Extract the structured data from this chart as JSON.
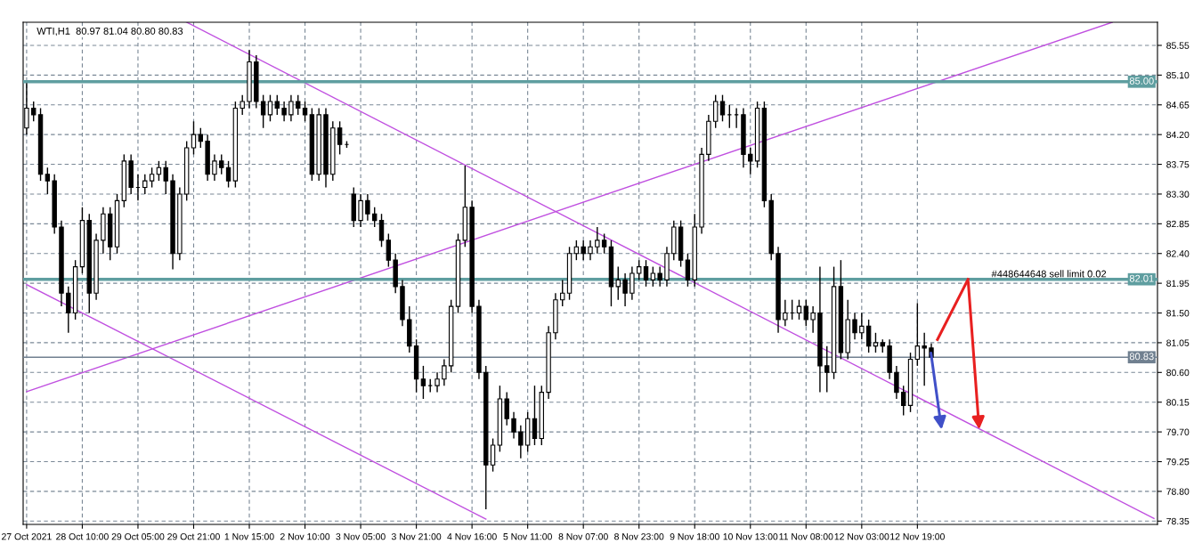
{
  "chart_data": {
    "type": "candlestick",
    "title": "WTI,H1  80.97 81.04 80.80 80.83",
    "color": "#000000",
    "categories": [
      "27 Oct 2021",
      null,
      null,
      null,
      null,
      null,
      null,
      null,
      "28 Oct 10:00",
      null,
      null,
      null,
      null,
      null,
      null,
      null,
      "29 Oct 05:00",
      null,
      null,
      null,
      null,
      null,
      null,
      null,
      "29 Oct 21:00",
      null,
      null,
      null,
      null,
      null,
      null,
      null,
      "1 Nov 15:00",
      null,
      null,
      null,
      null,
      null,
      null,
      null,
      "2 Nov 10:00",
      null,
      null,
      null,
      null,
      null,
      null,
      null,
      "3 Nov 05:00",
      null,
      null,
      null,
      null,
      null,
      null,
      null,
      "3 Nov 21:00",
      null,
      null,
      null,
      null,
      null,
      null,
      null,
      "4 Nov 16:00",
      null,
      null,
      null,
      null,
      null,
      null,
      null,
      "5 Nov 11:00",
      null,
      null,
      null,
      null,
      null,
      null,
      null,
      "8 Nov 07:00",
      null,
      null,
      null,
      null,
      null,
      null,
      null,
      "8 Nov 23:00",
      null,
      null,
      null,
      null,
      null,
      null,
      null,
      "9 Nov 18:00",
      null,
      null,
      null,
      null,
      null,
      null,
      null,
      "10 Nov 13:00",
      null,
      null,
      null,
      null,
      null,
      null,
      null,
      "11 Nov 08:00",
      null,
      null,
      null,
      null,
      null,
      null,
      null,
      "12 Nov 03:00",
      null,
      null,
      null,
      null,
      null,
      null,
      null,
      "12 Nov 19:00",
      null,
      null,
      null,
      null,
      null,
      null,
      null,
      null,
      null,
      null,
      null,
      null,
      null,
      null,
      null,
      null,
      null,
      null,
      null,
      null,
      null,
      null,
      null,
      null,
      null,
      null,
      null,
      null,
      null,
      null,
      null,
      null,
      null,
      null
    ],
    "ohlc": [
      [
        84.3,
        84.98,
        84.2,
        84.6
      ],
      [
        84.6,
        84.7,
        84.4,
        84.5
      ],
      [
        84.5,
        84.6,
        83.5,
        83.6
      ],
      [
        83.6,
        83.7,
        83.3,
        83.5
      ],
      [
        83.5,
        83.6,
        82.7,
        82.8
      ],
      [
        82.8,
        82.9,
        81.6,
        81.8
      ],
      [
        81.8,
        81.9,
        81.2,
        81.5
      ],
      [
        81.5,
        82.3,
        81.4,
        82.2
      ],
      [
        82.2,
        83.1,
        82.1,
        82.9
      ],
      [
        82.9,
        83.0,
        81.5,
        81.8
      ],
      [
        81.8,
        82.7,
        81.7,
        82.6
      ],
      [
        82.6,
        83.1,
        82.4,
        83.0
      ],
      [
        83.0,
        83.1,
        82.3,
        82.5
      ],
      [
        82.5,
        83.3,
        82.4,
        83.2
      ],
      [
        83.2,
        83.9,
        83.1,
        83.8
      ],
      [
        83.8,
        83.9,
        83.3,
        83.4
      ],
      [
        83.4,
        83.6,
        83.2,
        83.4
      ],
      [
        83.4,
        83.6,
        83.3,
        83.5
      ],
      [
        83.5,
        83.7,
        83.4,
        83.6
      ],
      [
        83.6,
        83.8,
        83.5,
        83.7
      ],
      [
        83.7,
        83.8,
        83.3,
        83.5
      ],
      [
        83.5,
        83.6,
        82.16,
        82.4
      ],
      [
        82.4,
        83.4,
        82.3,
        83.3
      ],
      [
        83.3,
        84.1,
        83.2,
        84.0
      ],
      [
        84.0,
        84.4,
        83.9,
        84.2
      ],
      [
        84.2,
        84.3,
        84.0,
        84.1
      ],
      [
        84.1,
        84.2,
        83.5,
        83.6
      ],
      [
        83.6,
        83.9,
        83.5,
        83.8
      ],
      [
        83.8,
        83.9,
        83.6,
        83.7
      ],
      [
        83.7,
        83.8,
        83.4,
        83.5
      ],
      [
        83.5,
        84.7,
        83.4,
        84.6
      ],
      [
        84.6,
        84.8,
        84.5,
        84.7
      ],
      [
        84.7,
        85.48,
        84.6,
        85.3
      ],
      [
        85.3,
        85.4,
        84.6,
        84.7
      ],
      [
        84.7,
        84.8,
        84.3,
        84.5
      ],
      [
        84.5,
        84.8,
        84.4,
        84.7
      ],
      [
        84.7,
        84.8,
        84.5,
        84.6
      ],
      [
        84.6,
        84.7,
        84.4,
        84.5
      ],
      [
        84.5,
        84.8,
        84.4,
        84.7
      ],
      [
        84.7,
        84.8,
        84.5,
        84.6
      ],
      [
        84.6,
        84.7,
        84.4,
        84.5
      ],
      [
        84.5,
        84.6,
        83.5,
        83.6
      ],
      [
        83.6,
        84.6,
        83.5,
        84.5
      ],
      [
        84.5,
        84.6,
        83.4,
        83.6
      ],
      [
        83.6,
        84.4,
        83.5,
        84.3
      ],
      [
        84.3,
        84.4,
        83.9,
        84.05
      ],
      [
        84.05,
        84.1,
        84.0,
        84.05
      ],
      [
        83.3,
        83.4,
        82.8,
        82.9
      ],
      [
        82.9,
        83.3,
        82.8,
        83.2
      ],
      [
        83.2,
        83.3,
        82.9,
        83.0
      ],
      [
        83.0,
        83.1,
        82.8,
        82.9
      ],
      [
        82.9,
        83.0,
        82.5,
        82.6
      ],
      [
        82.6,
        82.7,
        82.2,
        82.3
      ],
      [
        82.3,
        82.4,
        81.8,
        81.9
      ],
      [
        81.9,
        82.0,
        81.3,
        81.4
      ],
      [
        81.4,
        81.6,
        80.9,
        81.0
      ],
      [
        81.0,
        81.1,
        80.3,
        80.5
      ],
      [
        80.5,
        80.7,
        80.2,
        80.4
      ],
      [
        80.4,
        80.5,
        80.3,
        80.4
      ],
      [
        80.4,
        80.6,
        80.3,
        80.5
      ],
      [
        80.5,
        80.8,
        80.4,
        80.7
      ],
      [
        80.7,
        81.7,
        80.6,
        81.6
      ],
      [
        81.6,
        82.7,
        81.5,
        82.6
      ],
      [
        82.6,
        83.73,
        82.5,
        83.1
      ],
      [
        83.1,
        83.2,
        81.5,
        81.6
      ],
      [
        81.6,
        81.7,
        80.5,
        80.6
      ],
      [
        80.6,
        80.7,
        78.53,
        79.2
      ],
      [
        79.2,
        79.6,
        79.1,
        79.5
      ],
      [
        79.5,
        80.4,
        79.4,
        80.2
      ],
      [
        80.2,
        80.3,
        79.8,
        79.9
      ],
      [
        79.9,
        80.0,
        79.6,
        79.7
      ],
      [
        79.7,
        79.8,
        79.3,
        79.5
      ],
      [
        79.5,
        80.0,
        79.4,
        79.9
      ],
      [
        79.9,
        80.4,
        79.5,
        79.6
      ],
      [
        79.6,
        80.4,
        79.5,
        80.3
      ],
      [
        80.3,
        81.3,
        80.2,
        81.2
      ],
      [
        81.2,
        81.8,
        81.1,
        81.7
      ],
      [
        81.7,
        82.0,
        81.6,
        81.8
      ],
      [
        81.8,
        82.5,
        81.7,
        82.4
      ],
      [
        82.4,
        82.6,
        82.3,
        82.5
      ],
      [
        82.5,
        82.6,
        82.3,
        82.4
      ],
      [
        82.4,
        82.6,
        82.3,
        82.5
      ],
      [
        82.5,
        82.8,
        82.4,
        82.6
      ],
      [
        82.6,
        82.7,
        82.4,
        82.5
      ],
      [
        82.5,
        82.6,
        81.6,
        81.9
      ],
      [
        81.9,
        82.2,
        81.7,
        82.0
      ],
      [
        82.0,
        82.1,
        81.6,
        81.8
      ],
      [
        81.8,
        82.2,
        81.7,
        82.1
      ],
      [
        82.1,
        82.3,
        82.0,
        82.2
      ],
      [
        82.2,
        82.3,
        81.9,
        82.0
      ],
      [
        82.0,
        82.2,
        81.9,
        82.1
      ],
      [
        82.1,
        82.2,
        81.9,
        82.0
      ],
      [
        82.0,
        82.5,
        81.9,
        82.4
      ],
      [
        82.4,
        82.9,
        82.3,
        82.8
      ],
      [
        82.8,
        82.9,
        82.2,
        82.3
      ],
      [
        82.3,
        82.4,
        81.9,
        82.0
      ],
      [
        82.0,
        83.0,
        81.9,
        82.8
      ],
      [
        82.8,
        84.0,
        82.7,
        83.9
      ],
      [
        83.9,
        84.5,
        83.8,
        84.4
      ],
      [
        84.4,
        84.8,
        84.3,
        84.7
      ],
      [
        84.7,
        84.8,
        84.4,
        84.5
      ],
      [
        84.5,
        84.65,
        84.3,
        84.5
      ],
      [
        84.5,
        84.6,
        84.3,
        84.5
      ],
      [
        84.5,
        84.6,
        83.7,
        83.9
      ],
      [
        83.9,
        84.0,
        83.6,
        83.8
      ],
      [
        83.8,
        84.7,
        83.7,
        84.6
      ],
      [
        84.6,
        84.7,
        83.1,
        83.2
      ],
      [
        83.2,
        83.3,
        82.3,
        82.4
      ],
      [
        82.4,
        82.5,
        81.2,
        81.4
      ],
      [
        81.4,
        81.7,
        81.3,
        81.5
      ],
      [
        81.5,
        81.7,
        81.4,
        81.5
      ],
      [
        81.5,
        81.7,
        81.4,
        81.6
      ],
      [
        81.6,
        81.7,
        81.3,
        81.4
      ],
      [
        81.4,
        81.6,
        81.2,
        81.5
      ],
      [
        81.5,
        82.2,
        80.3,
        80.7
      ],
      [
        80.7,
        81.0,
        80.3,
        80.6
      ],
      [
        80.6,
        82.2,
        80.5,
        81.9
      ],
      [
        81.9,
        82.3,
        80.8,
        80.9
      ],
      [
        80.9,
        81.7,
        80.8,
        81.4
      ],
      [
        81.4,
        81.5,
        81.1,
        81.2
      ],
      [
        81.2,
        81.5,
        81.1,
        81.3
      ],
      [
        81.3,
        81.4,
        80.9,
        81.0
      ],
      [
        81.0,
        81.2,
        80.9,
        81.05
      ],
      [
        81.05,
        81.1,
        80.9,
        81.0
      ],
      [
        81.0,
        81.1,
        80.5,
        80.6
      ],
      [
        80.6,
        80.7,
        80.2,
        80.3
      ],
      [
        80.3,
        80.4,
        79.95,
        80.1
      ],
      [
        80.1,
        80.9,
        80.0,
        80.8
      ],
      [
        80.8,
        81.65,
        80.7,
        81.0
      ],
      [
        81.0,
        81.2,
        80.4,
        80.97
      ],
      [
        80.97,
        81.04,
        80.8,
        80.83
      ],
      null,
      null,
      null,
      null,
      null,
      null,
      null,
      null,
      null,
      null,
      null,
      null,
      null,
      null,
      null,
      null,
      null,
      null,
      null,
      null,
      null,
      null,
      null,
      null,
      null,
      null,
      null,
      null,
      null,
      null,
      null,
      null
    ],
    "series": [
      {
        "type": "line",
        "color": "#c050e0",
        "values": [
          null,
          null,
          null,
          null,
          null,
          null,
          null,
          null,
          null,
          null,
          null,
          null,
          null,
          null,
          null,
          null,
          null,
          null,
          null,
          null,
          null,
          null,
          null,
          85.9,
          null,
          null,
          null,
          null,
          null,
          null,
          null,
          null,
          null,
          null,
          null,
          null,
          null,
          null,
          null,
          null,
          null,
          null,
          null,
          null,
          null,
          null,
          null,
          null,
          null,
          null,
          null,
          null,
          null,
          null,
          null,
          null,
          null,
          null,
          null,
          null,
          null,
          null,
          null,
          null,
          null,
          null,
          null,
          null,
          null,
          null,
          null,
          null,
          null,
          null,
          null,
          null,
          null,
          null,
          null,
          null,
          null,
          null,
          null,
          null,
          null,
          null,
          null,
          null,
          null,
          null,
          null,
          null,
          null,
          null,
          null,
          null,
          null,
          null,
          null,
          null,
          null,
          null,
          null,
          null,
          null,
          null,
          null,
          null,
          null,
          null,
          null,
          null,
          null,
          null,
          null,
          null,
          null,
          null,
          null,
          null,
          null,
          null,
          null,
          null,
          null,
          null,
          null,
          null,
          null,
          null,
          null,
          null,
          null,
          null,
          null,
          null,
          null,
          null,
          null,
          null,
          null,
          null,
          null,
          null,
          null,
          null,
          null,
          null,
          null,
          null,
          null,
          null,
          null,
          null,
          null,
          null,
          null,
          null,
          null,
          null,
          null,
          null,
          78.39
        ]
      },
      {
        "type": "line",
        "color": "#c050e0",
        "values": [
          80.31,
          null,
          null,
          null,
          null,
          null,
          null,
          null,
          null,
          null,
          null,
          null,
          null,
          null,
          null,
          null,
          null,
          null,
          null,
          null,
          null,
          null,
          null,
          null,
          null,
          null,
          null,
          null,
          null,
          null,
          null,
          null,
          null,
          null,
          null,
          null,
          null,
          null,
          null,
          null,
          null,
          null,
          null,
          null,
          null,
          null,
          null,
          null,
          null,
          null,
          null,
          null,
          null,
          null,
          null,
          null,
          null,
          null,
          null,
          null,
          null,
          null,
          null,
          null,
          null,
          null,
          null,
          null,
          null,
          null,
          null,
          null,
          null,
          null,
          null,
          null,
          null,
          null,
          null,
          null,
          null,
          null,
          null,
          null,
          null,
          null,
          null,
          null,
          null,
          null,
          null,
          null,
          null,
          null,
          null,
          null,
          null,
          null,
          null,
          null,
          null,
          null,
          null,
          null,
          null,
          null,
          null,
          null,
          null,
          null,
          null,
          null,
          null,
          null,
          null,
          null,
          null,
          null,
          null,
          null,
          null,
          null,
          null,
          null,
          null,
          null,
          null,
          null,
          null,
          null,
          null,
          null,
          null,
          null,
          null,
          null,
          null,
          null,
          null,
          null,
          null,
          null,
          null,
          null,
          null,
          null,
          null,
          null,
          null,
          null,
          null,
          null,
          null,
          null,
          null,
          null,
          85.9,
          null,
          null,
          null,
          null,
          null,
          null
        ]
      },
      {
        "type": "line",
        "color": "#c050e0",
        "values": [
          81.93,
          null,
          null,
          null,
          null,
          null,
          null,
          null,
          null,
          null,
          null,
          null,
          null,
          null,
          null,
          null,
          null,
          null,
          null,
          null,
          null,
          null,
          null,
          null,
          null,
          null,
          null,
          null,
          null,
          null,
          null,
          null,
          null,
          null,
          null,
          null,
          null,
          null,
          null,
          null,
          null,
          null,
          null,
          null,
          null,
          null,
          null,
          null,
          null,
          null,
          null,
          null,
          null,
          null,
          null,
          null,
          null,
          null,
          null,
          null,
          null,
          null,
          null,
          null,
          null,
          null,
          78.38,
          null,
          null,
          null,
          null,
          null,
          null,
          null,
          null,
          null,
          null,
          null,
          null,
          null,
          null,
          null,
          null,
          null,
          null,
          null,
          null,
          null,
          null,
          null,
          null,
          null,
          null,
          null,
          null,
          null,
          null,
          null,
          null,
          null,
          null,
          null,
          null,
          null,
          null,
          null,
          null,
          null,
          null,
          null,
          null,
          null,
          null,
          null,
          null,
          null,
          null,
          null,
          null,
          null,
          null,
          null,
          null,
          null,
          null,
          null,
          null,
          null,
          null,
          null,
          null,
          null,
          null,
          null,
          null,
          null,
          null,
          null,
          null,
          null,
          null,
          null,
          null,
          null,
          null,
          null,
          null,
          null,
          null,
          null,
          null,
          null,
          null,
          null,
          null,
          null,
          null,
          null,
          null,
          null,
          null,
          null,
          null
        ]
      }
    ],
    "ylim": [
      78.3,
      85.9
    ],
    "yticks": [
      {
        "value": 85.55,
        "label": "85.55"
      },
      {
        "value": 85.1,
        "label": "85.10"
      },
      {
        "value": 84.65,
        "label": "84.65"
      },
      {
        "value": 84.2,
        "label": "84.20"
      },
      {
        "value": 83.75,
        "label": "83.75"
      },
      {
        "value": 83.3,
        "label": "83.30"
      },
      {
        "value": 82.85,
        "label": "82.85"
      },
      {
        "value": 82.4,
        "label": "82.40"
      },
      {
        "value": 81.95,
        "label": "81.95"
      },
      {
        "value": 81.5,
        "label": "81.50"
      },
      {
        "value": 81.05,
        "label": "81.05"
      },
      {
        "value": 80.6,
        "label": "80.60"
      },
      {
        "value": 80.15,
        "label": "80.15"
      },
      {
        "value": 79.7,
        "label": "79.70"
      },
      {
        "value": 79.25,
        "label": "79.25"
      },
      {
        "value": 78.8,
        "label": "78.80"
      },
      {
        "value": 78.35,
        "label": "78.35"
      }
    ],
    "ref_lines": [
      {
        "axis": "y",
        "value": 85.0,
        "label": "85.00",
        "color": "#5f9ea0"
      },
      {
        "axis": "y",
        "value": 82.01,
        "label": "82.01",
        "color": "#5f9ea0"
      },
      {
        "axis": "y",
        "value": 80.83,
        "label": "80.83",
        "color": "#708090"
      }
    ],
    "annotations": [
      {
        "text": "#448644648 sell limit 0.02",
        "y": 82.01
      }
    ],
    "grid": true,
    "legend": false
  }
}
